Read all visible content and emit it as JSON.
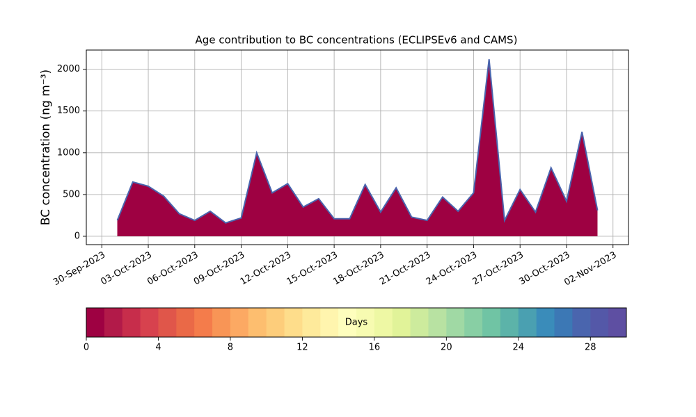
{
  "chart_data": {
    "type": "area",
    "title": "Age contribution to BC concentrations (ECLIPSEv6 and CAMS)",
    "y_label": "BC concentration (ng m⁻³)",
    "x": [
      "2023-10-01",
      "2023-10-02",
      "2023-10-03",
      "2023-10-04",
      "2023-10-05",
      "2023-10-06",
      "2023-10-07",
      "2023-10-08",
      "2023-10-09",
      "2023-10-10",
      "2023-10-11",
      "2023-10-12",
      "2023-10-13",
      "2023-10-14",
      "2023-10-15",
      "2023-10-16",
      "2023-10-17",
      "2023-10-18",
      "2023-10-19",
      "2023-10-20",
      "2023-10-21",
      "2023-10-22",
      "2023-10-23",
      "2023-10-24",
      "2023-10-25",
      "2023-10-26",
      "2023-10-27",
      "2023-10-28",
      "2023-10-29",
      "2023-10-30",
      "2023-10-31",
      "2023-11-01"
    ],
    "series": [
      {
        "color": "#9e0142",
        "edge_color": "#4a65ae",
        "values": [
          190,
          650,
          600,
          480,
          270,
          190,
          300,
          160,
          220,
          1000,
          520,
          630,
          350,
          450,
          210,
          210,
          620,
          290,
          580,
          230,
          190,
          470,
          300,
          520,
          2120,
          190,
          560,
          290,
          820,
          420,
          1250,
          310
        ]
      }
    ],
    "xlim": [
      "2023-09-29",
      "2023-11-03"
    ],
    "xticks": [
      {
        "value": "2023-09-30",
        "label": "30-Sep-2023"
      },
      {
        "value": "2023-10-03",
        "label": "03-Oct-2023"
      },
      {
        "value": "2023-10-06",
        "label": "06-Oct-2023"
      },
      {
        "value": "2023-10-09",
        "label": "09-Oct-2023"
      },
      {
        "value": "2023-10-12",
        "label": "12-Oct-2023"
      },
      {
        "value": "2023-10-15",
        "label": "15-Oct-2023"
      },
      {
        "value": "2023-10-18",
        "label": "18-Oct-2023"
      },
      {
        "value": "2023-10-21",
        "label": "21-Oct-2023"
      },
      {
        "value": "2023-10-24",
        "label": "24-Oct-2023"
      },
      {
        "value": "2023-10-27",
        "label": "27-Oct-2023"
      },
      {
        "value": "2023-10-30",
        "label": "30-Oct-2023"
      },
      {
        "value": "2023-11-02",
        "label": "02-Nov-2023"
      }
    ],
    "ylim": [
      -100,
      2230
    ],
    "yticks": [
      0,
      500,
      1000,
      1500,
      2000
    ],
    "grid": true,
    "colorbar": {
      "label": "Days",
      "lim": [
        0,
        30
      ],
      "ticks": [
        0,
        4,
        8,
        12,
        16,
        20,
        24,
        28
      ],
      "colors": [
        "#9e0142",
        "#b21a49",
        "#c72d4b",
        "#d7424e",
        "#e0564a",
        "#ea6947",
        "#f47c4b",
        "#f89556",
        "#fca963",
        "#fdbe6f",
        "#fdcd7b",
        "#fedd8b",
        "#feea9b",
        "#fff5ae",
        "#fefebd",
        "#f7fbb1",
        "#eef8a4",
        "#e1f399",
        "#cdeb9d",
        "#b8e2a2",
        "#a0d9a4",
        "#88cfa4",
        "#70c4a4",
        "#5cb3a9",
        "#4aa0b1",
        "#3a8cba",
        "#3c78b5",
        "#4a65ae",
        "#5458a8",
        "#5e4fa2"
      ]
    }
  }
}
